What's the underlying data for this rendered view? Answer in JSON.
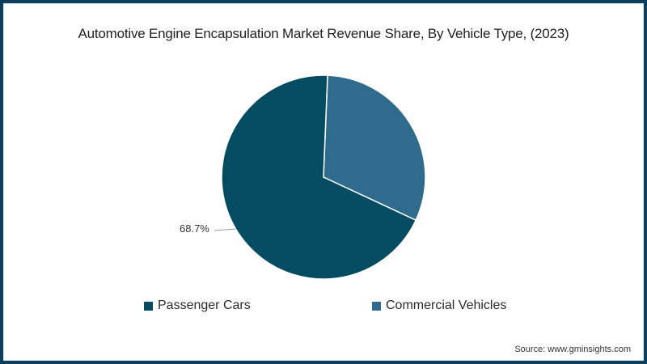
{
  "chart_data": {
    "type": "pie",
    "title": "Automotive Engine Encapsulation Market Revenue Share, By Vehicle Type, (2023)",
    "categories": [
      "Passenger Cars",
      "Commercial Vehicles"
    ],
    "values": [
      68.7,
      31.3
    ],
    "unit": "%",
    "colors": [
      "#054c63",
      "#2e6b8c"
    ],
    "data_labels": [
      {
        "category": "Passenger Cars",
        "text": "68.7%"
      }
    ],
    "legend_position": "bottom",
    "source": "Source: www.gminsights.com"
  },
  "title": "Automotive Engine Encapsulation Market Revenue Share, By Vehicle Type, (2023)",
  "data_label": "68.7%",
  "legend": [
    {
      "label": "Passenger Cars",
      "color": "#054c63"
    },
    {
      "label": "Commercial Vehicles",
      "color": "#2e6b8c"
    }
  ],
  "source": "Source: www.gminsights.com",
  "colors": {
    "frame": "#0d3f5c",
    "passenger": "#054c63",
    "commercial": "#2e6b8c"
  }
}
